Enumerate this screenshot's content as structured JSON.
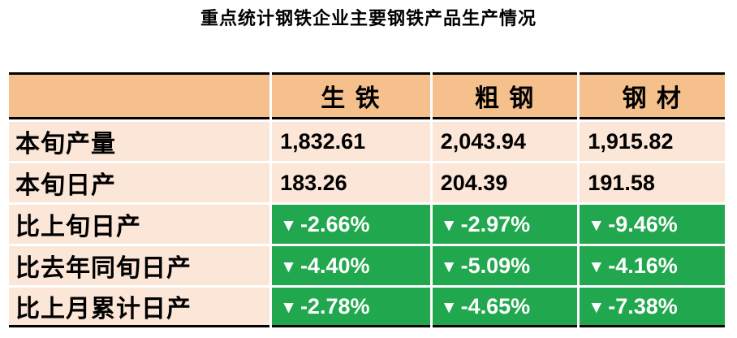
{
  "title": "重点统计钢铁企业主要钢铁产品生产情况",
  "table": {
    "down_icon": "▼",
    "columns": [
      "生 铁",
      "粗 钢",
      "钢 材"
    ],
    "rows": [
      {
        "label": "本旬产量",
        "type": "plain",
        "values": [
          "1,832.61",
          "2,043.94",
          "1,915.82"
        ]
      },
      {
        "label": "本旬日产",
        "type": "plain",
        "values": [
          "183.26",
          "204.39",
          "191.58"
        ]
      },
      {
        "label": "比上旬日产",
        "type": "down",
        "values": [
          "-2.66%",
          "-2.97%",
          "-9.46%"
        ]
      },
      {
        "label": "比去年同旬日产",
        "type": "down",
        "values": [
          "-4.40%",
          "-5.09%",
          "-4.16%"
        ]
      },
      {
        "label": "比上月累计日产",
        "type": "down",
        "values": [
          "-2.78%",
          "-4.65%",
          "-7.38%"
        ]
      }
    ],
    "colors": {
      "header_bg": "#f6c08d",
      "row_bg": "#fbe6d7",
      "decline_bg": "#21a84e",
      "decline_text": "#ffffff",
      "text": "#000000",
      "grid": "#ffffff",
      "border": "#000000"
    }
  },
  "chart_data": {
    "type": "table",
    "title": "重点统计钢铁企业主要钢铁产品生产情况",
    "columns": [
      "",
      "生铁",
      "粗钢",
      "钢材"
    ],
    "rows": [
      [
        "本旬产量",
        "1,832.61",
        "2,043.94",
        "1,915.82"
      ],
      [
        "本旬日产",
        "183.26",
        "204.39",
        "191.58"
      ],
      [
        "比上旬日产",
        "-2.66%",
        "-2.97%",
        "-9.46%"
      ],
      [
        "比去年同旬日产",
        "-4.40%",
        "-5.09%",
        "-4.16%"
      ],
      [
        "比上月累计日产",
        "-2.78%",
        "-4.65%",
        "-7.38%"
      ]
    ],
    "notes": "Rows 3-5 show declines, rendered as green cells with white down-triangle markers"
  }
}
